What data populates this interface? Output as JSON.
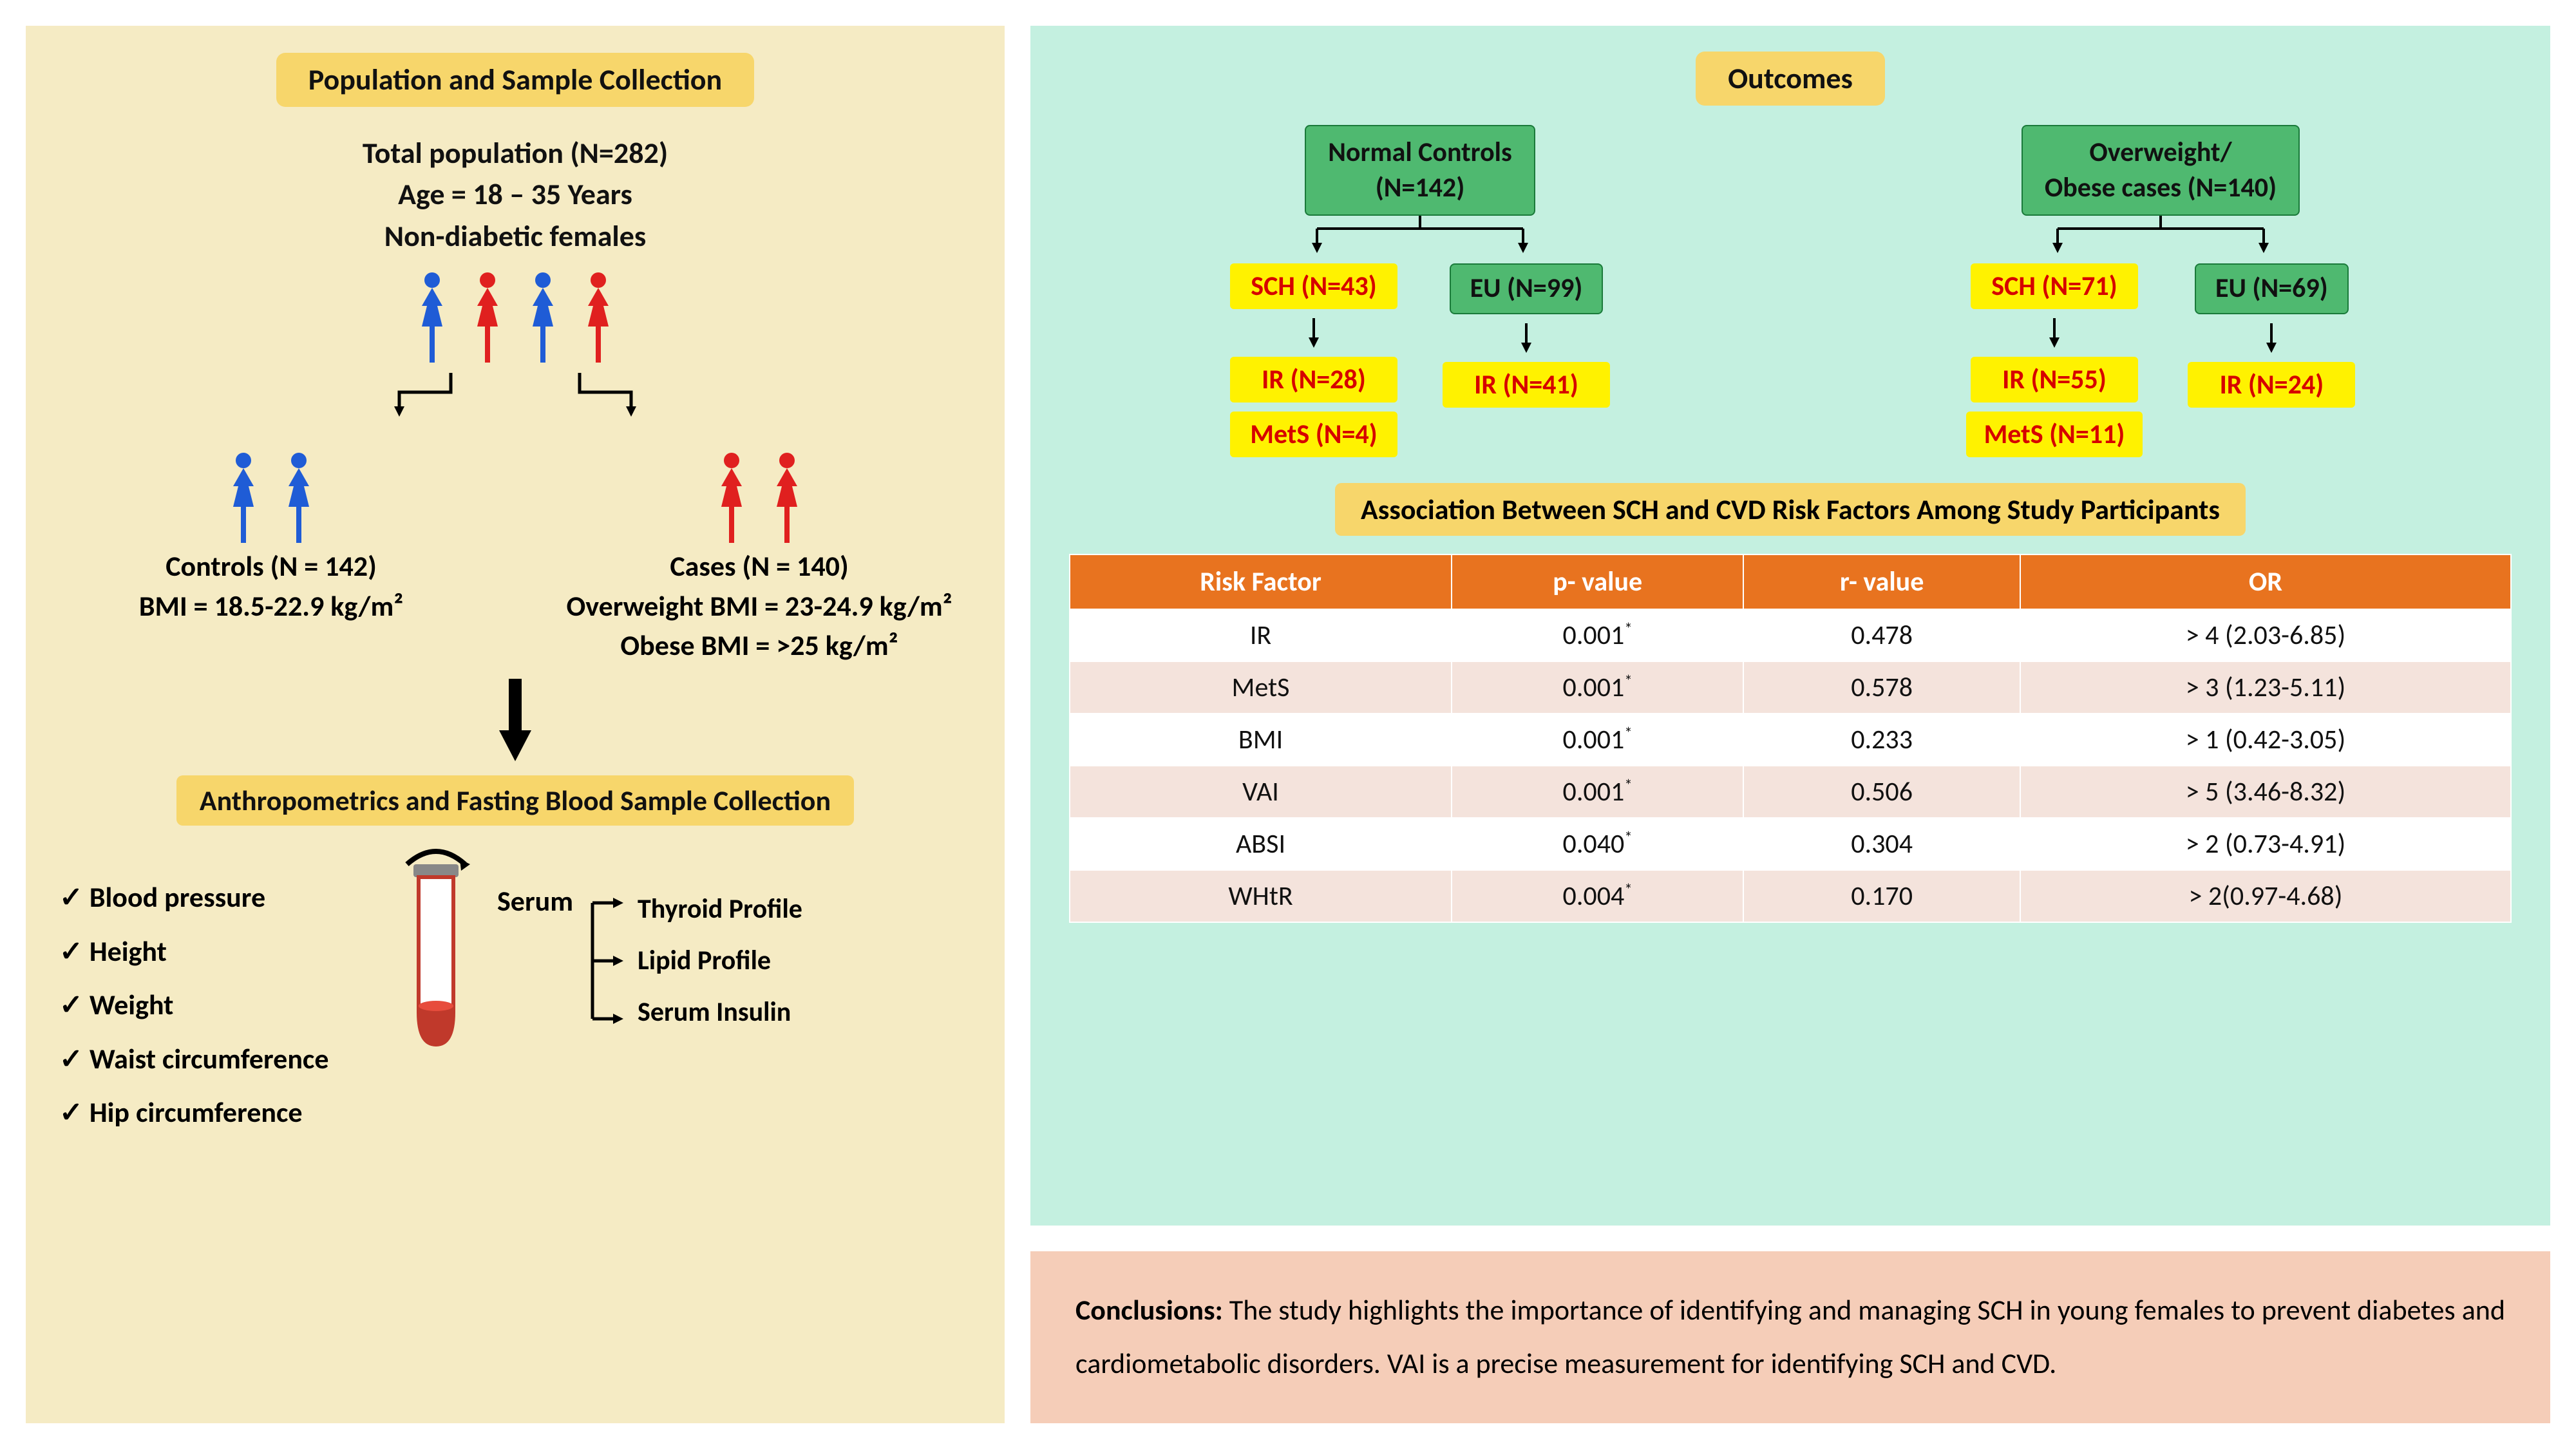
{
  "left": {
    "title": "Population and Sample Collection",
    "header_l1": "Total population (N=282)",
    "header_l2": "Age = 18 – 35 Years",
    "header_l3": "Non-diabetic females",
    "controls": {
      "label": "Controls (N = 142)",
      "bmi": "BMI = 18.5-22.9 kg/m²",
      "color": "#1f5cd6"
    },
    "cases": {
      "label": "Cases (N = 140)",
      "overweight": "Overweight BMI = 23-24.9 kg/m²",
      "obese": "Obese BMI = >25 kg/m²",
      "color": "#e0201f"
    },
    "subtitle": "Anthropometrics and Fasting Blood Sample Collection",
    "measures": [
      "Blood pressure",
      "Height",
      "Weight",
      "Waist circumference",
      "Hip circumference"
    ],
    "serum_label": "Serum",
    "serum_outputs": [
      "Thyroid Profile",
      "Lipid Profile",
      "Serum Insulin"
    ]
  },
  "right": {
    "title": "Outcomes",
    "branches": [
      {
        "head_l1": "Normal Controls",
        "head_l2": "(N=142)",
        "left": {
          "sch": "SCH (N=43)",
          "ir": "IR (N=28)",
          "mets": "MetS (N=4)"
        },
        "right": {
          "eu": "EU (N=99)",
          "ir": "IR (N=41)"
        }
      },
      {
        "head_l1": "Overweight/",
        "head_l2": "Obese cases (N=140)",
        "left": {
          "sch": "SCH (N=71)",
          "ir": "IR (N=55)",
          "mets": "MetS (N=11)"
        },
        "right": {
          "eu": "EU (N=69)",
          "ir": "IR (N=24)"
        }
      }
    ],
    "assoc_title": "Association Between SCH and CVD Risk Factors Among Study Participants",
    "table": {
      "columns": [
        "Risk Factor",
        "p- value",
        "r- value",
        "OR"
      ],
      "rows": [
        [
          "IR",
          "0.001*",
          "0.478",
          "> 4 (2.03-6.85)"
        ],
        [
          "MetS",
          "0.001*",
          "0.578",
          "> 3 (1.23-5.11)"
        ],
        [
          "BMI",
          "0.001*",
          "0.233",
          "> 1 (0.42-3.05)"
        ],
        [
          "VAI",
          "0.001*",
          "0.506",
          "> 5 (3.46-8.32)"
        ],
        [
          "ABSI",
          "0.040*",
          "0.304",
          "> 2 (0.73-4.91)"
        ],
        [
          "WHtR",
          "0.004*",
          "0.170",
          "> 2(0.97-4.68)"
        ]
      ],
      "header_bg": "#e8731f",
      "row_alt_bg": "#f4e3dc",
      "row_bg": "#ffffff"
    }
  },
  "conclusion": {
    "label": "Conclusions:",
    "text": " The study highlights the importance of identifying and managing SCH in young females to prevent diabetes and cardiometabolic disorders. VAI is a precise measurement for identifying SCH and CVD."
  },
  "colors": {
    "left_bg": "#f5ebc4",
    "right_top_bg": "#c4f0e0",
    "right_bottom_bg": "#f5cdb8",
    "title_bg": "#f7d66b",
    "green_node": "#4fb970",
    "yellow_node": "#fff200",
    "yellow_text": "#d60000"
  }
}
